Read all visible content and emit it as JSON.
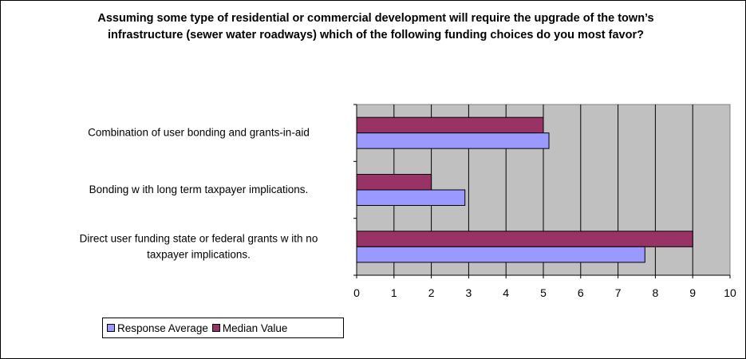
{
  "chart_data": {
    "type": "bar",
    "orientation": "horizontal",
    "title": "Assuming some type of residential or commercial development will require the upgrade of the town’s infrastructure (sewer water roadways) which of the following funding choices do you most favor?",
    "categories": [
      "Combination of user bonding and grants-in-aid",
      "Bonding w ith long term taxpayer implications.",
      "Direct user funding state or federal grants w ith no taxpayer implications."
    ],
    "category_lines": [
      [
        "Combination of user bonding and grants-in-aid"
      ],
      [
        "Bonding w ith long term taxpayer implications."
      ],
      [
        "Direct user funding state or federal grants w ith no",
        "taxpayer implications."
      ]
    ],
    "series": [
      {
        "name": "Response Average",
        "color": "#9999ff",
        "values": [
          5.15,
          2.9,
          7.72
        ]
      },
      {
        "name": "Median Value",
        "color": "#993366",
        "values": [
          5,
          2,
          9
        ]
      }
    ],
    "xlim": [
      0,
      10
    ],
    "xticks": [
      "0",
      "1",
      "2",
      "3",
      "4",
      "5",
      "6",
      "7",
      "8",
      "9",
      "10"
    ],
    "plot_background": "#c0c0c0",
    "grid": true,
    "legend": "bottom-left"
  }
}
